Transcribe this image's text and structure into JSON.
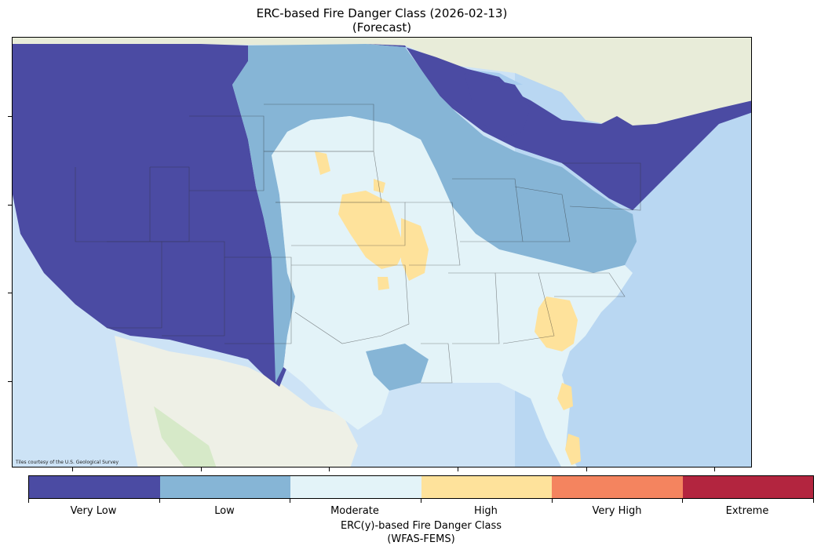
{
  "map": {
    "title": "ERC-based Fire Danger Class (2026-02-13)",
    "subtitle": "(Forecast)",
    "attribution": "Tiles courtesy of the U.S. Geological Survey",
    "colorbar_title": "ERC(y)-based Fire Danger Class",
    "colorbar_subtitle": "(WFAS-FEMS)",
    "classes": [
      {
        "label": "Very Low",
        "color": "#4b4ba3"
      },
      {
        "label": "Low",
        "color": "#86b5d6"
      },
      {
        "label": "Moderate",
        "color": "#e3f3f8"
      },
      {
        "label": "High",
        "color": "#fee29b"
      },
      {
        "label": "Very High",
        "color": "#f4845f"
      },
      {
        "label": "Extreme",
        "color": "#b3253f"
      }
    ]
  }
}
